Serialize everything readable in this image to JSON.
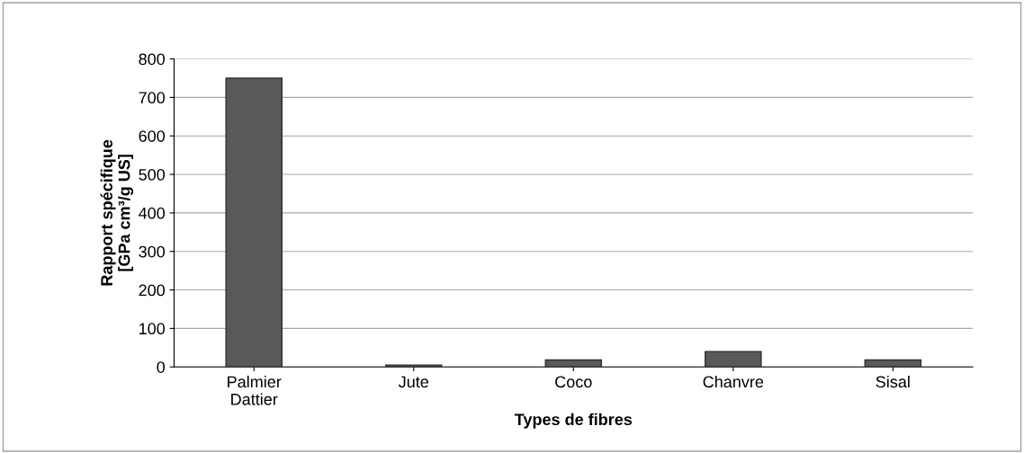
{
  "chart_data": {
    "type": "bar",
    "categories": [
      "Palmier\nDattier",
      "Jute",
      "Coco",
      "Chanvre",
      "Sisal"
    ],
    "values": [
      750,
      5,
      18,
      40,
      18
    ],
    "color": "#595959",
    "xlabel": "Types de fibres",
    "ylabel": "Rapport spécifique\n[GPa cm³/g US]",
    "ylim": [
      0,
      800
    ],
    "yticks": [
      0,
      100,
      200,
      300,
      400,
      500,
      600,
      700,
      800
    ],
    "grid": "y"
  }
}
